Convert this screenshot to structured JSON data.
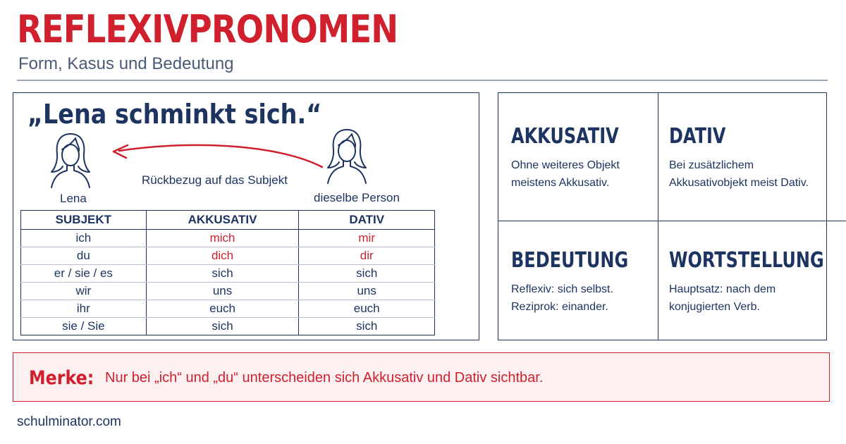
{
  "header": {
    "title": "REFLEXIVPRONOMEN",
    "subtitle": "Form, Kasus und Bedeutung"
  },
  "example": {
    "sentence": "„Lena schminkt sich.“",
    "left_label": "Lena",
    "right_label": "dieselbe Person",
    "arrow_label": "Rückbezug auf das Subjekt",
    "left_icon": "woman-icon",
    "right_icon": "woman-icon",
    "arrow_color": "#d0202e"
  },
  "table": {
    "headers": [
      "SUBJEKT",
      "AKKUSATIV",
      "DATIV"
    ],
    "rows": [
      [
        "ich",
        "mich",
        "mir"
      ],
      [
        "du",
        "dich",
        "dir"
      ],
      [
        "er / sie / es",
        "sich",
        "sich"
      ],
      [
        "wir",
        "uns",
        "uns"
      ],
      [
        "ihr",
        "euch",
        "euch"
      ],
      [
        "sie / Sie",
        "sich",
        "sich"
      ]
    ]
  },
  "cards": [
    {
      "title": "AKKUSATIV",
      "lines": [
        "Ohne weiteres Objekt",
        "meistens Akkusativ."
      ]
    },
    {
      "title": "DATIV",
      "lines": [
        "Bei zusätzlichem",
        "Akkusativobjekt meist Dativ."
      ]
    },
    {
      "title": "BEDEUTUNG",
      "lines": [
        "Reflexiv: sich selbst.",
        "Reziprok: einander."
      ]
    },
    {
      "title": "WORTSTELLUNG",
      "lines": [
        "Hauptsatz: nach dem",
        "konjugierten Verb."
      ]
    }
  ],
  "merke": {
    "label": "Merke:",
    "text": "Nur bei „ich“ und „du“ unterscheiden sich Akkusativ und Dativ sichtbar."
  },
  "footer": {
    "site": "schulminator.com"
  },
  "colors": {
    "accent": "#d0202e",
    "navy": "#1d3461",
    "merke_bg": "#fdf0f1"
  }
}
